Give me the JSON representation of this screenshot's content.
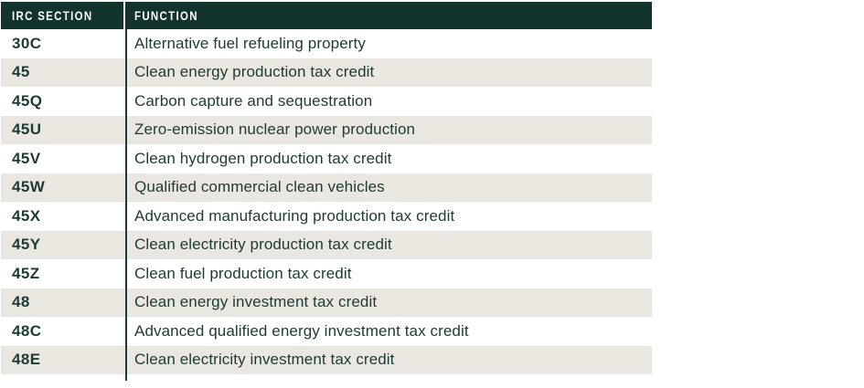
{
  "table": {
    "columns": [
      {
        "label": "IRC SECTION"
      },
      {
        "label": "FUNCTION"
      }
    ],
    "rows": [
      {
        "code": "30C",
        "function": "Alternative fuel refueling property"
      },
      {
        "code": "45",
        "function": "Clean energy production tax credit"
      },
      {
        "code": "45Q",
        "function": "Carbon capture and sequestration"
      },
      {
        "code": "45U",
        "function": "Zero-emission nuclear power production"
      },
      {
        "code": "45V",
        "function": "Clean hydrogen production tax credit"
      },
      {
        "code": "45W",
        "function": "Qualified commercial clean vehicles"
      },
      {
        "code": "45X",
        "function": "Advanced manufacturing production tax credit"
      },
      {
        "code": "45Y",
        "function": "Clean electricity production tax credit"
      },
      {
        "code": "45Z",
        "function": "Clean fuel production tax credit"
      },
      {
        "code": "48",
        "function": "Clean energy investment tax credit"
      },
      {
        "code": "48C",
        "function": "Advanced qualified energy investment tax credit"
      },
      {
        "code": "48E",
        "function": "Clean electricity investment tax credit"
      }
    ],
    "colors": {
      "header_bg": "#13332E",
      "header_text": "#FFFFFF",
      "row_bg": "#FFFFFF",
      "row_alt_bg": "#EAE7E0",
      "text": "#1D3B35",
      "divider": "#1D3B35"
    }
  }
}
